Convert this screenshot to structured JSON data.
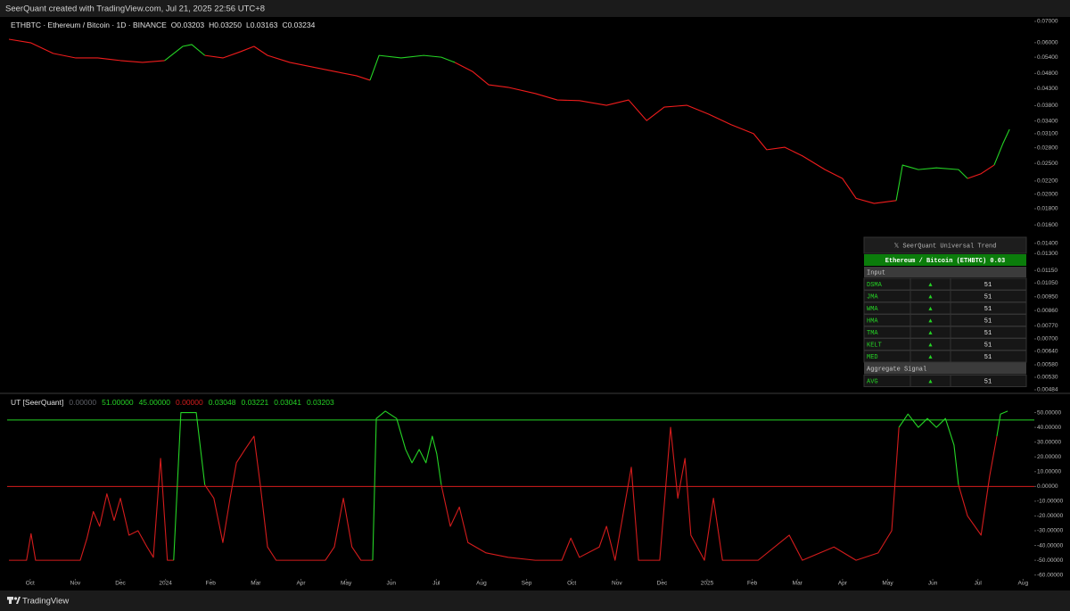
{
  "header": {
    "title": "SeerQuant created with TradingView.com, Jul 21, 2025 22:56 UTC+8"
  },
  "footer": {
    "brand": "TradingView"
  },
  "chart_data": [
    {
      "type": "line",
      "title": "ETHBTC · Ethereum / Bitcoin · 1D · BINANCE",
      "ohlc": [
        "O0.03203",
        "H0.03250",
        "L0.03163",
        "C0.03234"
      ],
      "log_scale": true,
      "grid": false,
      "xlim": [
        -0.51,
        22.25
      ],
      "x": [
        -0.47,
        0.02,
        0.51,
        1.01,
        1.5,
        2.0,
        2.49,
        2.98,
        3.38,
        3.58,
        3.87,
        4.27,
        4.66,
        4.96,
        5.26,
        5.75,
        6.25,
        6.74,
        7.23,
        7.53,
        7.73,
        8.22,
        8.72,
        9.11,
        9.41,
        9.8,
        10.16,
        10.59,
        11.19,
        11.68,
        12.17,
        12.77,
        13.26,
        13.66,
        14.05,
        14.55,
        15.04,
        15.53,
        16.03,
        16.32,
        16.72,
        17.11,
        17.61,
        18.0,
        18.3,
        18.7,
        19.19,
        19.33,
        19.68,
        20.08,
        20.57,
        20.77,
        21.07,
        21.36,
        21.56,
        21.7
      ],
      "series": [
        {
          "color": "#f01c1c",
          "values": [
            0.0615,
            0.0599,
            0.0555,
            0.0537,
            0.0537,
            0.0527,
            0.052,
            0.0527,
            null,
            null,
            0.0547,
            0.0537,
            0.0562,
            0.0584,
            0.0547,
            0.052,
            0.0503,
            0.0487,
            0.0472,
            0.0457,
            null,
            null,
            null,
            null,
            0.052,
            0.0487,
            0.0442,
            0.0434,
            0.0415,
            0.0396,
            0.0394,
            0.0381,
            0.0396,
            0.0341,
            0.0376,
            0.0381,
            0.0357,
            0.0331,
            0.031,
            0.0276,
            0.0281,
            0.0264,
            0.0239,
            0.0224,
            0.0194,
            0.0187,
            0.0191,
            null,
            null,
            null,
            null,
            0.0224,
            0.0232,
            0.0247,
            null,
            null
          ]
        },
        {
          "color": "#25d425",
          "values": [
            null,
            null,
            null,
            null,
            null,
            null,
            null,
            0.0527,
            0.0584,
            0.0592,
            0.0547,
            null,
            null,
            null,
            null,
            null,
            null,
            null,
            null,
            0.0457,
            0.0547,
            0.0537,
            0.0547,
            0.054,
            0.052,
            null,
            null,
            null,
            null,
            null,
            null,
            null,
            null,
            null,
            null,
            null,
            null,
            null,
            null,
            null,
            null,
            null,
            null,
            null,
            null,
            null,
            0.0191,
            0.0247,
            0.0239,
            0.0242,
            0.0239,
            0.0224,
            null,
            0.0247,
            0.029,
            0.032
          ]
        }
      ],
      "ylim": [
        0.00484,
        0.07
      ],
      "yticks": [
        {
          "value": 0.07,
          "label": "0.07000"
        },
        {
          "value": 0.06,
          "label": "0.06000"
        },
        {
          "value": 0.054,
          "label": "0.05400"
        },
        {
          "value": 0.048,
          "label": "0.04800"
        },
        {
          "value": 0.043,
          "label": "0.04300"
        },
        {
          "value": 0.038,
          "label": "0.03800"
        },
        {
          "value": 0.034,
          "label": "0.03400"
        },
        {
          "value": 0.031,
          "label": "0.03100"
        },
        {
          "value": 0.028,
          "label": "0.02800"
        },
        {
          "value": 0.025,
          "label": "0.02500"
        },
        {
          "value": 0.022,
          "label": "0.02200"
        },
        {
          "value": 0.02,
          "label": "0.02000"
        },
        {
          "value": 0.018,
          "label": "0.01800"
        },
        {
          "value": 0.016,
          "label": "0.01600"
        },
        {
          "value": 0.014,
          "label": "0.01400"
        },
        {
          "value": 0.013,
          "label": "0.01300"
        },
        {
          "value": 0.0115,
          "label": "0.01150"
        },
        {
          "value": 0.0105,
          "label": "0.01050"
        },
        {
          "value": 0.0095,
          "label": "0.00950"
        },
        {
          "value": 0.0086,
          "label": "0.00860"
        },
        {
          "value": 0.0077,
          "label": "0.00770"
        },
        {
          "value": 0.007,
          "label": "0.00700"
        },
        {
          "value": 0.0064,
          "label": "0.00640"
        },
        {
          "value": 0.0058,
          "label": "0.00580"
        },
        {
          "value": 0.0053,
          "label": "0.00530"
        },
        {
          "value": 0.00484,
          "label": "0.00484"
        }
      ]
    },
    {
      "type": "line",
      "title": "UT [SeerQuant]",
      "grid": false,
      "log_scale": false,
      "legend_values": [
        {
          "value": 0,
          "label": "0.00000",
          "color": "#5d5f66"
        },
        {
          "value": 51,
          "label": "51.00000",
          "color": "#25d425"
        },
        {
          "value": 45,
          "label": "45.00000",
          "color": "#25d425"
        },
        {
          "value": 0,
          "label": "0.00000",
          "color": "#d41c1c"
        },
        {
          "value": 0.03048,
          "label": "0.03048",
          "color": "#25d425"
        },
        {
          "value": 0.03221,
          "label": "0.03221",
          "color": "#25d425"
        },
        {
          "value": 0.03041,
          "label": "0.03041",
          "color": "#25d425"
        },
        {
          "value": 0.03203,
          "label": "0.03203",
          "color": "#25d425"
        }
      ],
      "hlines": [
        {
          "value": 45,
          "color": "#25d425"
        },
        {
          "value": 0,
          "color": "#d41c1c"
        }
      ],
      "xlim": [
        -0.51,
        22.25
      ],
      "xticks": [
        {
          "value": 0,
          "label": "Oct"
        },
        {
          "value": 1,
          "label": "Nov"
        },
        {
          "value": 2,
          "label": "Dec"
        },
        3,
        {
          "value": 4,
          "label": "Feb"
        },
        {
          "value": 5,
          "label": "Mar"
        },
        {
          "value": 6,
          "label": "Apr"
        },
        {
          "value": 7,
          "label": "May"
        },
        {
          "value": 8,
          "label": "Jun"
        },
        {
          "value": 9,
          "label": "Jul"
        },
        {
          "value": 10,
          "label": "Aug"
        },
        {
          "value": 11,
          "label": "Sep"
        },
        {
          "value": 12,
          "label": "Oct"
        },
        {
          "value": 13,
          "label": "Nov"
        },
        {
          "value": 14,
          "label": "Dec"
        },
        15,
        {
          "value": 16,
          "label": "Feb"
        },
        {
          "value": 17,
          "label": "Mar"
        },
        {
          "value": 18,
          "label": "Apr"
        },
        {
          "value": 19,
          "label": "May"
        },
        {
          "value": 20,
          "label": "Jun"
        },
        {
          "value": 21,
          "label": "Jul"
        },
        {
          "value": 22,
          "label": "Aug"
        }
      ],
      "xtick_labels": {
        "3": "2024",
        "15": "2025"
      },
      "x": [
        -0.47,
        -0.08,
        0.02,
        0.12,
        0.51,
        1.11,
        1.26,
        1.4,
        1.54,
        1.7,
        1.86,
        2.0,
        2.19,
        2.39,
        2.59,
        2.73,
        2.89,
        3.04,
        3.18,
        3.34,
        3.68,
        3.87,
        4.07,
        4.27,
        4.43,
        4.57,
        4.76,
        4.96,
        5.1,
        5.26,
        5.45,
        6.05,
        6.54,
        6.74,
        6.94,
        7.13,
        7.33,
        7.59,
        7.67,
        7.87,
        8.12,
        8.32,
        8.46,
        8.62,
        8.77,
        8.91,
        9.01,
        9.11,
        9.31,
        9.51,
        9.7,
        10.1,
        10.59,
        11.19,
        11.78,
        11.98,
        12.17,
        12.61,
        12.77,
        12.96,
        13.32,
        13.48,
        13.95,
        14.19,
        14.35,
        14.51,
        14.64,
        14.94,
        15.14,
        15.34,
        16.13,
        16.82,
        17.11,
        17.81,
        18.3,
        18.79,
        19.09,
        19.25,
        19.45,
        19.68,
        19.88,
        20.08,
        20.28,
        20.47,
        20.57,
        20.77,
        21.07,
        21.26,
        21.42,
        21.5,
        21.66
      ],
      "series": [
        {
          "color": "#d41c1c",
          "values": [
            -50,
            -50,
            -32,
            -50,
            -50,
            -50,
            -35,
            -17,
            -27,
            -5,
            -23,
            -8,
            -33,
            -30,
            -41,
            -48,
            19,
            -50,
            -50,
            null,
            null,
            1,
            -8,
            -38,
            -8,
            16,
            25,
            34,
            1,
            -41,
            -50,
            -50,
            -50,
            -41,
            -8,
            -41,
            -50,
            -50,
            null,
            null,
            null,
            null,
            null,
            null,
            null,
            null,
            null,
            1,
            -27,
            -14,
            -38,
            -45,
            -48,
            -50,
            -50,
            -35,
            -48,
            -41,
            -27,
            -50,
            13,
            -50,
            -50,
            40,
            -8,
            19,
            -33,
            -50,
            -8,
            -50,
            -50,
            -33,
            -50,
            -41,
            -50,
            -45,
            -30,
            40,
            null,
            null,
            null,
            null,
            null,
            null,
            1,
            -20,
            -33,
            7,
            34,
            null,
            null
          ]
        },
        {
          "color": "#25d425",
          "values": [
            null,
            null,
            null,
            null,
            null,
            null,
            null,
            null,
            null,
            null,
            null,
            null,
            null,
            null,
            null,
            null,
            null,
            null,
            -50,
            50,
            50,
            1,
            null,
            null,
            null,
            null,
            null,
            null,
            null,
            null,
            null,
            null,
            null,
            null,
            null,
            null,
            null,
            -50,
            46,
            51,
            46,
            25,
            16,
            25,
            16,
            34,
            22,
            1,
            null,
            null,
            null,
            null,
            null,
            null,
            null,
            null,
            null,
            null,
            null,
            null,
            null,
            null,
            null,
            null,
            null,
            null,
            null,
            null,
            null,
            null,
            null,
            null,
            null,
            null,
            null,
            null,
            null,
            40,
            49,
            40,
            46,
            40,
            46,
            28,
            1,
            null,
            null,
            null,
            34,
            49,
            51
          ]
        }
      ],
      "ylim": [
        -62,
        60
      ],
      "yticks": [
        {
          "value": 50,
          "label": "50.00000"
        },
        {
          "value": 40,
          "label": "40.00000"
        },
        {
          "value": 30,
          "label": "30.00000"
        },
        {
          "value": 20,
          "label": "20.00000"
        },
        {
          "value": 10,
          "label": "10.00000"
        },
        {
          "value": 0,
          "label": "0.00000"
        },
        {
          "value": -10,
          "label": "-10.00000"
        },
        {
          "value": -20,
          "label": "-20.00000"
        },
        {
          "value": -30,
          "label": "-30.00000"
        },
        {
          "value": -40,
          "label": "-40.00000"
        },
        {
          "value": -50,
          "label": "-50.00000"
        },
        {
          "value": -60,
          "label": "-60.00000"
        }
      ]
    }
  ],
  "table": {
    "title": "𝕏 SeerQuant Universal Trend",
    "subtitle": "Ethereum / Bitcoin (ETHBTC) 0.03",
    "input_header": "Input",
    "rows": [
      {
        "name": "DSMA",
        "signal": "▲",
        "value": 51
      },
      {
        "name": "JMA",
        "signal": "▲",
        "value": 51
      },
      {
        "name": "WMA",
        "signal": "▲",
        "value": 51
      },
      {
        "name": "HMA",
        "signal": "▲",
        "value": 51
      },
      {
        "name": "TMA",
        "signal": "▲",
        "value": 51
      },
      {
        "name": "KELT",
        "signal": "▲",
        "value": 51
      },
      {
        "name": "MED",
        "signal": "▲",
        "value": 51
      }
    ],
    "aggregate_header": "Aggregate Signal",
    "aggregate": {
      "name": "AVG",
      "signal": "▲",
      "value": 51
    }
  }
}
